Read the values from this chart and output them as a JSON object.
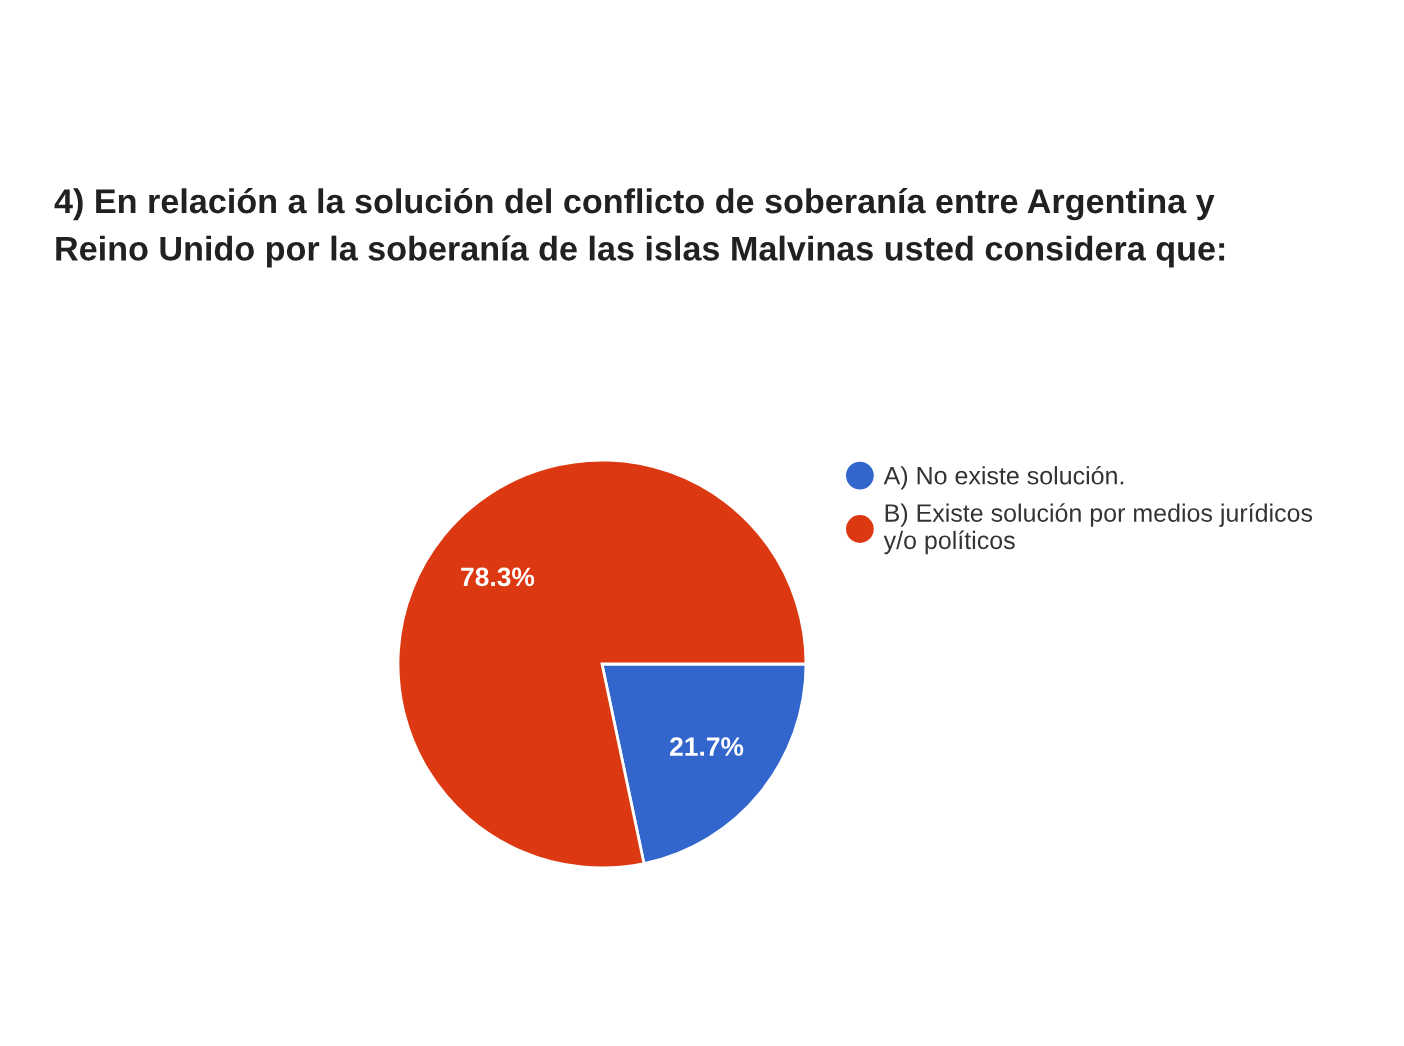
{
  "chart_data": {
    "type": "pie",
    "title": "4) En relación a la solución del conflicto de soberanía entre Argentina y\nReino Unido por la soberanía de las islas Malvinas usted considera que:",
    "categories": [
      "A) No existe solución.",
      "B) Existe solución por medios jurídicos\ny/o políticos"
    ],
    "values": [
      21.7,
      78.3
    ],
    "colors": [
      "#3366cc",
      "#dc3912"
    ],
    "value_labels": [
      "21.7%",
      "78.3%"
    ],
    "legend": "right"
  }
}
